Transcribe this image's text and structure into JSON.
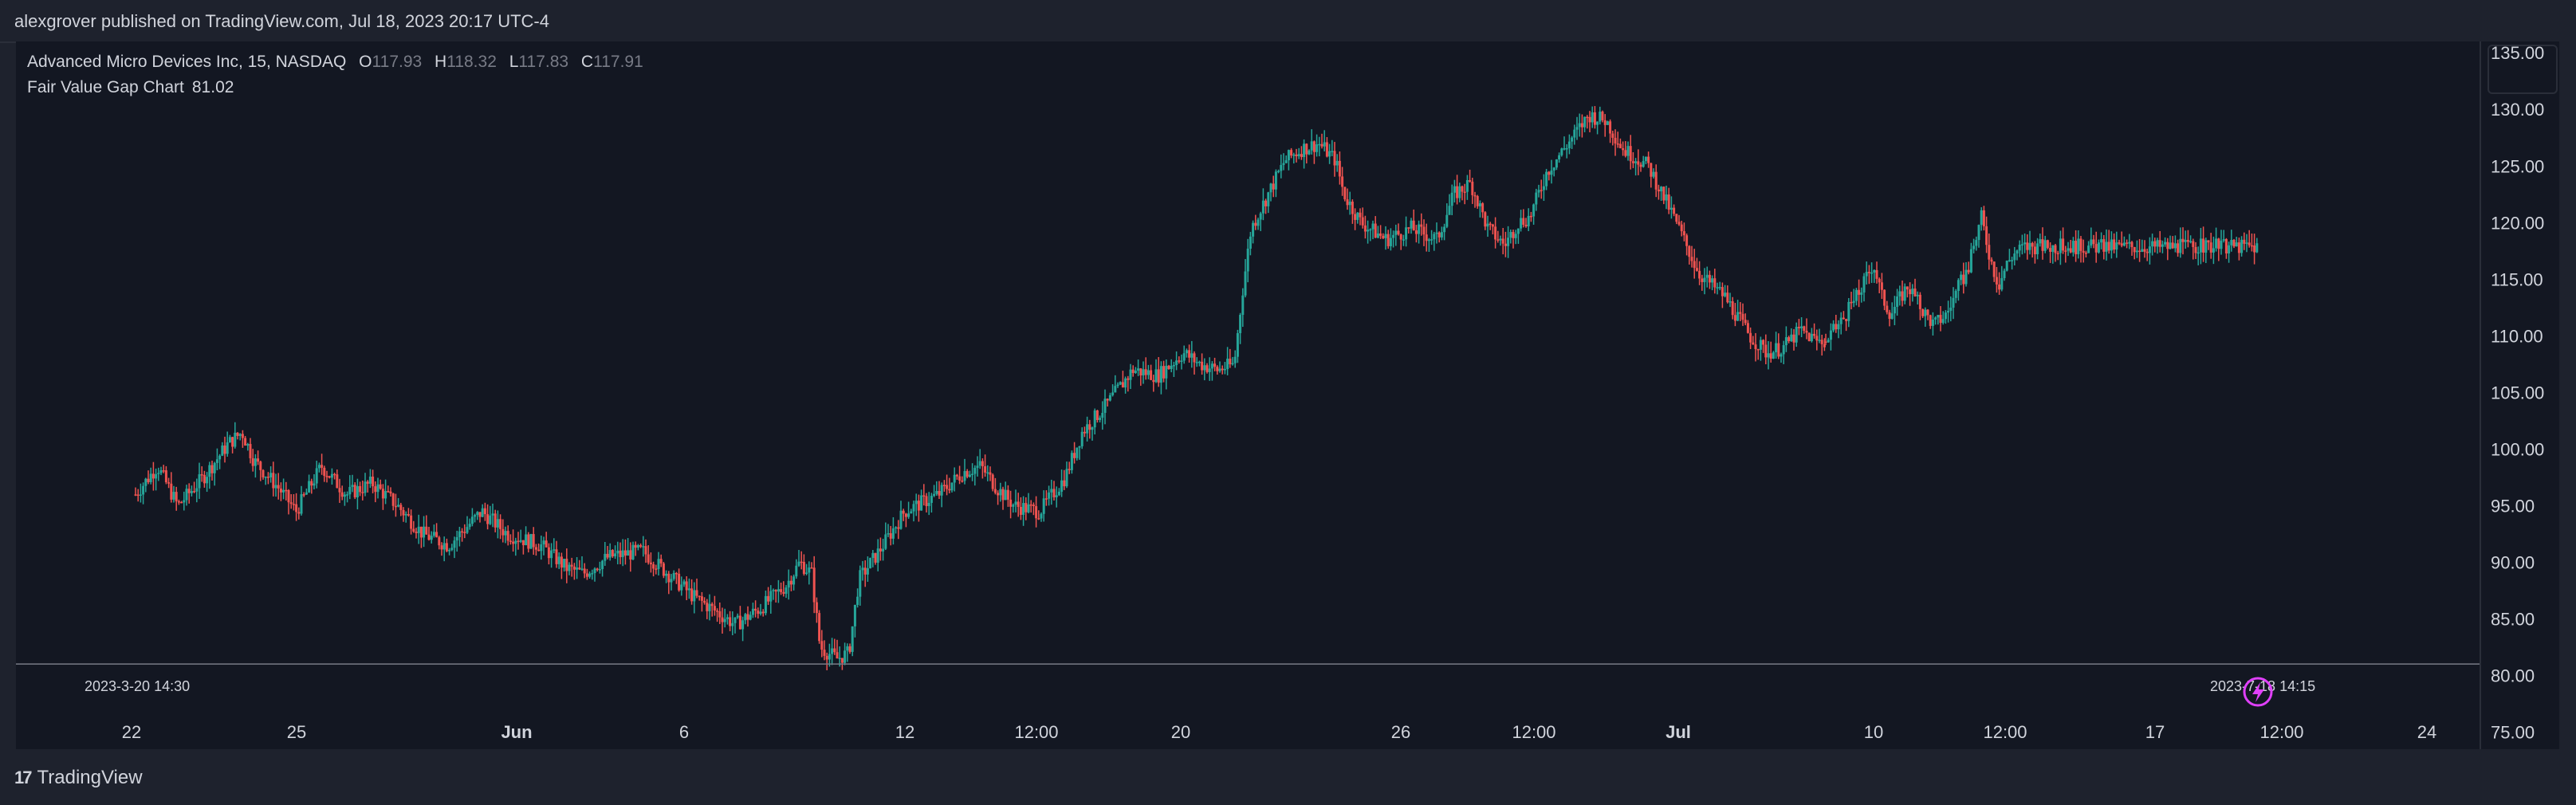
{
  "header": {
    "text": "alexgrover published on TradingView.com, Jul 18, 2023 20:17 UTC-4"
  },
  "legend": {
    "title": "Advanced Micro Devices Inc, 15, NASDAQ",
    "o_label": "O",
    "o_value": "117.93",
    "h_label": "H",
    "h_value": "118.32",
    "l_label": "L",
    "l_value": "117.83",
    "c_label": "C",
    "c_value": "117.91",
    "indicator_label": "Fair Value Gap Chart",
    "indicator_value": "81.02"
  },
  "footer": {
    "brand": "TradingView",
    "logo": "17"
  },
  "colors": {
    "background": "#131722",
    "up": "#26a69a",
    "down": "#ef5350",
    "text": "#d1d4dc",
    "indicator_line": "#787b86",
    "bolt": "#e040fb"
  },
  "chart_data": {
    "type": "candlestick",
    "y_ticks": [
      "135.00",
      "130.00",
      "125.00",
      "120.00",
      "115.00",
      "110.00",
      "105.00",
      "100.00",
      "95.00",
      "90.00",
      "85.00",
      "80.00",
      "75.00"
    ],
    "ylim": [
      73.5,
      136
    ],
    "x_ticks": [
      "22",
      "25",
      "Jun",
      "6",
      "12",
      "12:00",
      "20",
      "26",
      "12:00",
      "Jul",
      "10",
      "12:00",
      "17",
      "12:00",
      "24"
    ],
    "price_series": [
      {
        "t": 0.0,
        "p": 96.0
      },
      {
        "t": 0.013,
        "p": 98.5
      },
      {
        "t": 0.025,
        "p": 95.0
      },
      {
        "t": 0.04,
        "p": 97.5
      },
      {
        "t": 0.055,
        "p": 100.5
      },
      {
        "t": 0.063,
        "p": 101.5
      },
      {
        "t": 0.07,
        "p": 99.0
      },
      {
        "t": 0.085,
        "p": 96.5
      },
      {
        "t": 0.095,
        "p": 94.5
      },
      {
        "t": 0.11,
        "p": 98.5
      },
      {
        "t": 0.125,
        "p": 96.0
      },
      {
        "t": 0.14,
        "p": 97.0
      },
      {
        "t": 0.155,
        "p": 95.0
      },
      {
        "t": 0.17,
        "p": 92.5
      },
      {
        "t": 0.185,
        "p": 91.5
      },
      {
        "t": 0.205,
        "p": 94.5
      },
      {
        "t": 0.22,
        "p": 92.5
      },
      {
        "t": 0.24,
        "p": 91.5
      },
      {
        "t": 0.255,
        "p": 89.5
      },
      {
        "t": 0.265,
        "p": 89.0
      },
      {
        "t": 0.28,
        "p": 90.5
      },
      {
        "t": 0.3,
        "p": 91.0
      },
      {
        "t": 0.315,
        "p": 89.0
      },
      {
        "t": 0.33,
        "p": 87.0
      },
      {
        "t": 0.345,
        "p": 85.5
      },
      {
        "t": 0.355,
        "p": 84.5
      },
      {
        "t": 0.37,
        "p": 86.0
      },
      {
        "t": 0.385,
        "p": 88.0
      },
      {
        "t": 0.393,
        "p": 90.0
      },
      {
        "t": 0.4,
        "p": 89.0
      },
      {
        "t": 0.405,
        "p": 82.5
      },
      {
        "t": 0.415,
        "p": 81.5
      },
      {
        "t": 0.422,
        "p": 82.0
      },
      {
        "t": 0.428,
        "p": 88.5
      },
      {
        "t": 0.44,
        "p": 91.0
      },
      {
        "t": 0.455,
        "p": 94.5
      },
      {
        "t": 0.475,
        "p": 96.0
      },
      {
        "t": 0.49,
        "p": 98.0
      },
      {
        "t": 0.5,
        "p": 98.5
      },
      {
        "t": 0.51,
        "p": 96.5
      },
      {
        "t": 0.52,
        "p": 95.0
      },
      {
        "t": 0.535,
        "p": 94.5
      },
      {
        "t": 0.55,
        "p": 97.5
      },
      {
        "t": 0.56,
        "p": 101.5
      },
      {
        "t": 0.575,
        "p": 104.0
      },
      {
        "t": 0.59,
        "p": 107.0
      },
      {
        "t": 0.605,
        "p": 106.5
      },
      {
        "t": 0.62,
        "p": 108.5
      },
      {
        "t": 0.63,
        "p": 107.5
      },
      {
        "t": 0.64,
        "p": 107.0
      },
      {
        "t": 0.65,
        "p": 107.5
      },
      {
        "t": 0.655,
        "p": 114.0
      },
      {
        "t": 0.66,
        "p": 119.5
      },
      {
        "t": 0.67,
        "p": 122.5
      },
      {
        "t": 0.68,
        "p": 125.5
      },
      {
        "t": 0.69,
        "p": 126.5
      },
      {
        "t": 0.7,
        "p": 127.0
      },
      {
        "t": 0.71,
        "p": 125.5
      },
      {
        "t": 0.715,
        "p": 122.5
      },
      {
        "t": 0.725,
        "p": 120.0
      },
      {
        "t": 0.74,
        "p": 118.5
      },
      {
        "t": 0.755,
        "p": 119.5
      },
      {
        "t": 0.77,
        "p": 118.5
      },
      {
        "t": 0.78,
        "p": 122.5
      },
      {
        "t": 0.79,
        "p": 123.5
      },
      {
        "t": 0.8,
        "p": 119.5
      },
      {
        "t": 0.81,
        "p": 118.0
      },
      {
        "t": 0.818,
        "p": 120.0
      },
      {
        "t": 0.825,
        "p": 120.5
      },
      {
        "t": 0.835,
        "p": 124.5
      },
      {
        "t": 0.85,
        "p": 127.5
      },
      {
        "t": 0.86,
        "p": 129.5
      },
      {
        "t": 0.87,
        "p": 129.0
      },
      {
        "t": 0.88,
        "p": 126.5
      },
      {
        "t": 0.895,
        "p": 125.0
      },
      {
        "t": 0.91,
        "p": 120.5
      },
      {
        "t": 0.925,
        "p": 115.5
      },
      {
        "t": 0.94,
        "p": 113.5
      },
      {
        "t": 0.955,
        "p": 110.0
      },
      {
        "t": 0.965,
        "p": 108.5
      },
      {
        "t": 0.975,
        "p": 109.0
      },
      {
        "t": 0.985,
        "p": 110.5
      },
      {
        "t": 0.995,
        "p": 109.5
      }
    ],
    "price_series_b": [
      {
        "t": 0.0,
        "p": 109.5
      },
      {
        "t": 0.04,
        "p": 111.5
      },
      {
        "t": 0.08,
        "p": 114.0
      },
      {
        "t": 0.11,
        "p": 116.5
      },
      {
        "t": 0.13,
        "p": 113.5
      },
      {
        "t": 0.15,
        "p": 112.0
      },
      {
        "t": 0.19,
        "p": 114.5
      },
      {
        "t": 0.22,
        "p": 112.5
      },
      {
        "t": 0.25,
        "p": 111.0
      },
      {
        "t": 0.28,
        "p": 112.0
      },
      {
        "t": 0.31,
        "p": 114.5
      },
      {
        "t": 0.33,
        "p": 116.0
      },
      {
        "t": 0.36,
        "p": 120.5
      },
      {
        "t": 0.38,
        "p": 117.0
      },
      {
        "t": 0.4,
        "p": 114.5
      },
      {
        "t": 0.42,
        "p": 116.5
      },
      {
        "t": 0.44,
        "p": 117.5
      },
      {
        "t": 0.46,
        "p": 117.9
      }
    ],
    "indicator_series": [
      {
        "t": 0.0,
        "v": 81.02
      },
      {
        "t": 1.0,
        "v": 81.02
      }
    ],
    "indicator_labels": {
      "start": "2023-3-20 14:30",
      "end": "2023-7-18 14:15"
    }
  }
}
